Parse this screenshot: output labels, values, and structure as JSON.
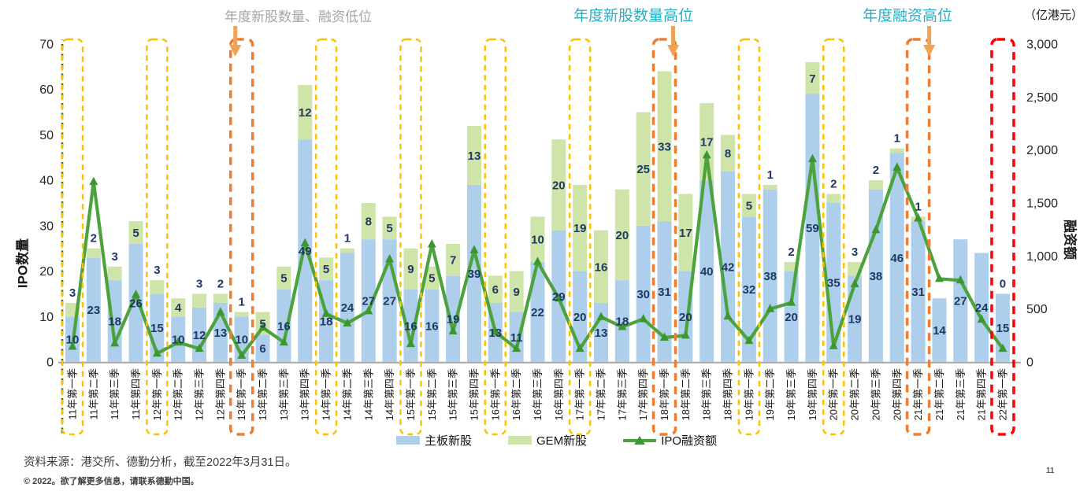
{
  "chart_data": {
    "type": "bar",
    "subtype": "stacked-bar-with-line",
    "categories": [
      "11年第一季",
      "11年第二季",
      "11年第三季",
      "11年第四季",
      "12年第一季",
      "12年第二季",
      "12年第三季",
      "12年第四季",
      "13年第一季",
      "13年第二季",
      "13年第三季",
      "13年第四季",
      "14年第一季",
      "14年第二季",
      "14年第三季",
      "14年第四季",
      "15年第一季",
      "15年第二季",
      "15年第三季",
      "15年第四季",
      "16年第一季",
      "16年第二季",
      "16年第三季",
      "16年第四季",
      "17年第一季",
      "17年第二季",
      "17年第三季",
      "17年第四季",
      "18年第一季",
      "18年第二季",
      "18年第三季",
      "18年第四季",
      "19年第一季",
      "19年第二季",
      "19年第三季",
      "19年第四季",
      "20年第一季",
      "20年第二季",
      "20年第三季",
      "20年第四季",
      "21年第一季",
      "21年第二季",
      "21年第三季",
      "21年第四季",
      "22年第一季"
    ],
    "series": [
      {
        "name": "主板新股",
        "type": "bar",
        "axis": "left",
        "color": "#AECFEC",
        "values": [
          10,
          23,
          18,
          26,
          15,
          10,
          12,
          13,
          10,
          6,
          16,
          49,
          18,
          24,
          27,
          27,
          16,
          16,
          19,
          39,
          13,
          11,
          22,
          29,
          20,
          13,
          18,
          30,
          31,
          20,
          40,
          42,
          32,
          38,
          20,
          59,
          35,
          19,
          38,
          46,
          31,
          14,
          27,
          24,
          15
        ]
      },
      {
        "name": "GEM新股",
        "type": "bar",
        "axis": "left",
        "color": "#CFE4A8",
        "values": [
          3,
          2,
          3,
          5,
          3,
          4,
          3,
          2,
          1,
          5,
          5,
          12,
          5,
          1,
          8,
          5,
          9,
          5,
          7,
          13,
          6,
          9,
          10,
          20,
          19,
          16,
          20,
          25,
          33,
          17,
          17,
          8,
          5,
          1,
          2,
          7,
          2,
          3,
          2,
          1,
          1,
          null,
          null,
          null,
          0
        ]
      },
      {
        "name": "IPO融资额",
        "type": "line",
        "axis": "right",
        "color": "#4CA33D",
        "marker_color": "#3E9633",
        "values": [
          145,
          1700,
          175,
          635,
          80,
          185,
          125,
          470,
          60,
          325,
          185,
          1120,
          455,
          365,
          480,
          970,
          170,
          1110,
          290,
          1055,
          285,
          125,
          945,
          600,
          125,
          425,
          330,
          405,
          230,
          250,
          1950,
          430,
          200,
          500,
          560,
          1915,
          150,
          735,
          1245,
          1835,
          1355,
          785,
          770,
          400,
          125
        ]
      }
    ],
    "left_axis": {
      "title": "IPO数量",
      "min": 0,
      "max": 70,
      "step": 10,
      "tick_labels": [
        "0",
        "10",
        "20",
        "30",
        "40",
        "50",
        "60",
        "70"
      ]
    },
    "right_axis": {
      "title": "融资额",
      "unit": "（亿港元）",
      "min": 0,
      "max": 3000,
      "step": 500,
      "tick_labels": [
        "0",
        "500",
        "1,000",
        "1,500",
        "2,000",
        "2,500",
        "3,000"
      ]
    },
    "grid": false,
    "legend_position": "bottom",
    "label_color": "#1F3864",
    "highlights": [
      {
        "category": "11年第一季",
        "style": "yellow"
      },
      {
        "category": "12年第一季",
        "style": "yellow"
      },
      {
        "category": "13年第一季",
        "style": "orange"
      },
      {
        "category": "14年第一季",
        "style": "yellow"
      },
      {
        "category": "15年第一季",
        "style": "yellow"
      },
      {
        "category": "16年第一季",
        "style": "yellow"
      },
      {
        "category": "17年第一季",
        "style": "yellow"
      },
      {
        "category": "18年第一季",
        "style": "orange"
      },
      {
        "category": "19年第一季",
        "style": "yellow"
      },
      {
        "category": "20年第一季",
        "style": "yellow"
      },
      {
        "category": "21年第一季",
        "style": "orange"
      },
      {
        "category": "22年第一季",
        "style": "red"
      }
    ],
    "highlight_colors": {
      "yellow": "#FFC000",
      "orange": "#ED7D31",
      "red": "#FF0000",
      "axis_green": "#1D6F42",
      "arrow": "#F0A355"
    }
  },
  "annotations": [
    {
      "text": "年度新股数量、融资低位",
      "color": "#A6A6A6",
      "target": "13年第一季"
    },
    {
      "text": "年度新股数量高位",
      "color": "#29AEC4",
      "target": "18年第一季"
    },
    {
      "text": "年度融资高位",
      "color": "#29AEC4",
      "target": "21年第一季"
    }
  ],
  "legend": {
    "items": [
      "主板新股",
      "GEM新股",
      "IPO融资额"
    ]
  },
  "footer": {
    "source": "资料来源：港交所、德勤分析，截至2022年3月31日。",
    "copyright": "© 2022。欲了解更多信息，请联系德勤中国。",
    "page": "11"
  }
}
